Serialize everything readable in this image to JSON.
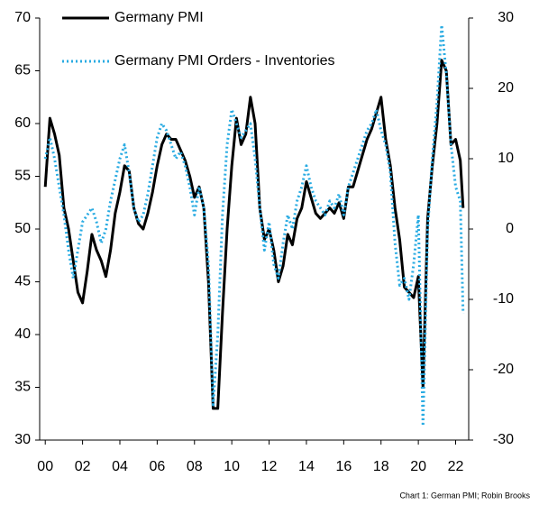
{
  "chart_data": {
    "type": "line",
    "caption": "Chart 1: German PMI; Robin Brooks",
    "x": [
      0,
      0.25,
      0.5,
      0.75,
      1,
      1.25,
      1.5,
      1.75,
      2,
      2.25,
      2.5,
      2.75,
      3,
      3.25,
      3.5,
      3.75,
      4,
      4.25,
      4.5,
      4.75,
      5,
      5.25,
      5.5,
      5.75,
      6,
      6.25,
      6.5,
      6.75,
      7,
      7.25,
      7.5,
      7.75,
      8,
      8.25,
      8.5,
      8.75,
      9,
      9.25,
      9.5,
      9.75,
      10,
      10.25,
      10.5,
      10.75,
      11,
      11.25,
      11.5,
      11.75,
      12,
      12.25,
      12.5,
      12.75,
      13,
      13.25,
      13.5,
      13.75,
      14,
      14.25,
      14.5,
      14.75,
      15,
      15.25,
      15.5,
      15.75,
      16,
      16.25,
      16.5,
      16.75,
      17,
      17.25,
      17.5,
      17.75,
      18,
      18.25,
      18.5,
      18.75,
      19,
      19.25,
      19.5,
      19.75,
      20,
      20.25,
      20.5,
      20.75,
      21,
      21.25,
      21.5,
      21.75,
      22,
      22.25,
      22.4
    ],
    "series": [
      {
        "name": "Germany PMI",
        "color": "#000000",
        "axis": "y",
        "values": [
          54,
          60.5,
          59,
          57,
          52,
          50,
          47,
          44,
          43,
          46,
          49.5,
          48,
          47,
          45.5,
          48,
          51.5,
          53.5,
          56,
          55.5,
          52,
          50.5,
          50,
          51.5,
          53.5,
          56,
          58,
          59,
          58.5,
          58.5,
          57.5,
          56.5,
          55,
          53,
          54,
          52,
          45,
          33,
          33,
          42,
          50,
          56,
          60.5,
          58,
          59,
          62.5,
          60,
          52,
          49,
          50,
          48,
          45,
          46.5,
          49.5,
          48.5,
          51,
          52,
          54.5,
          53,
          51.5,
          51,
          51.5,
          52,
          51.5,
          52.5,
          51,
          54,
          54,
          55.5,
          57,
          58.5,
          59.5,
          61,
          62.5,
          58.5,
          56,
          52,
          49,
          44.5,
          44,
          43.5,
          45.5,
          35,
          51,
          56,
          60,
          66,
          65,
          58,
          58.5,
          56.5,
          52
        ]
      },
      {
        "name": "Germany PMI Orders - Inventories",
        "color": "#29abe2",
        "axis": "y2",
        "values": [
          10,
          13,
          10,
          6,
          2,
          -3,
          -7,
          -3,
          1,
          2,
          3,
          1,
          -2,
          0,
          4,
          7,
          10,
          12,
          8,
          3,
          1,
          2,
          5,
          9,
          13,
          15,
          14,
          12,
          10,
          11,
          9,
          6,
          2,
          6,
          3,
          -5,
          -25,
          -15,
          2,
          12,
          17,
          15,
          13,
          14,
          15,
          10,
          3,
          -3,
          1,
          -5,
          -7,
          -2,
          2,
          0,
          4,
          6,
          9,
          6,
          4,
          3,
          2,
          4,
          3,
          5,
          2,
          6,
          8,
          10,
          12,
          14,
          15,
          17,
          14,
          12,
          8,
          -2,
          -8,
          -7,
          -10,
          -5,
          2,
          -28,
          0,
          10,
          18,
          29,
          22,
          12,
          6,
          4,
          -12
        ]
      }
    ],
    "xlim": [
      -0.3,
      22.7
    ],
    "xticks": [
      {
        "value": 0,
        "label": "00"
      },
      {
        "value": 2,
        "label": "02"
      },
      {
        "value": 4,
        "label": "04"
      },
      {
        "value": 6,
        "label": "06"
      },
      {
        "value": 8,
        "label": "08"
      },
      {
        "value": 10,
        "label": "10"
      },
      {
        "value": 12,
        "label": "12"
      },
      {
        "value": 14,
        "label": "14"
      },
      {
        "value": 16,
        "label": "16"
      },
      {
        "value": 18,
        "label": "18"
      },
      {
        "value": 20,
        "label": "20"
      },
      {
        "value": 22,
        "label": "22"
      }
    ],
    "ylim": [
      30,
      70
    ],
    "yticks": [
      30,
      35,
      40,
      45,
      50,
      55,
      60,
      65,
      70
    ],
    "y2lim": [
      -30,
      30
    ],
    "y2ticks": [
      -30,
      -20,
      -10,
      0,
      10,
      20,
      30
    ],
    "grid": false,
    "legend": "top-left"
  }
}
